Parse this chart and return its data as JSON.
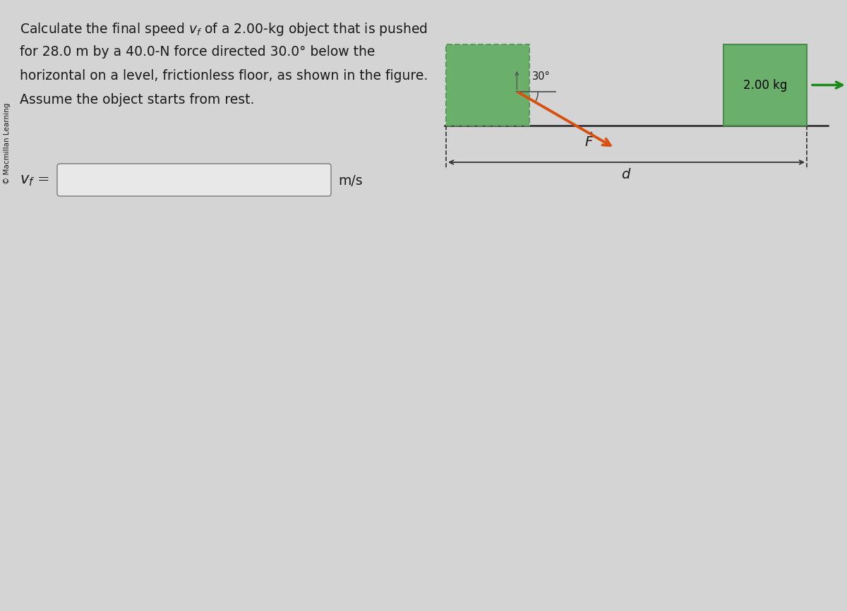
{
  "bg_color": "#d4d4d4",
  "fig_width": 12.0,
  "fig_height": 8.66,
  "text_color": "#1a1a1a",
  "problem_lines": [
    "Calculate the final speed $v_f$ of a 2.00-kg object that is pushed",
    "for 28.0 m by a 40.0-N force directed 30.0° below the",
    "horizontal on a level, frictionless floor, as shown in the figure.",
    "Assume the object starts from rest."
  ],
  "copyright_text": "© Macmillan Learning",
  "green_fill": "#6ab06a",
  "green_dark": "#4a8a4a",
  "green_dashed": "#5a9a5a",
  "orange_color": "#d95010",
  "green_arrow": "#1a8a1a",
  "floor_color": "#222222",
  "dim_line_color": "#333333",
  "angle_line_color": "#555555",
  "input_box_color": "#888888",
  "input_box_fill": "#e8e8e8"
}
